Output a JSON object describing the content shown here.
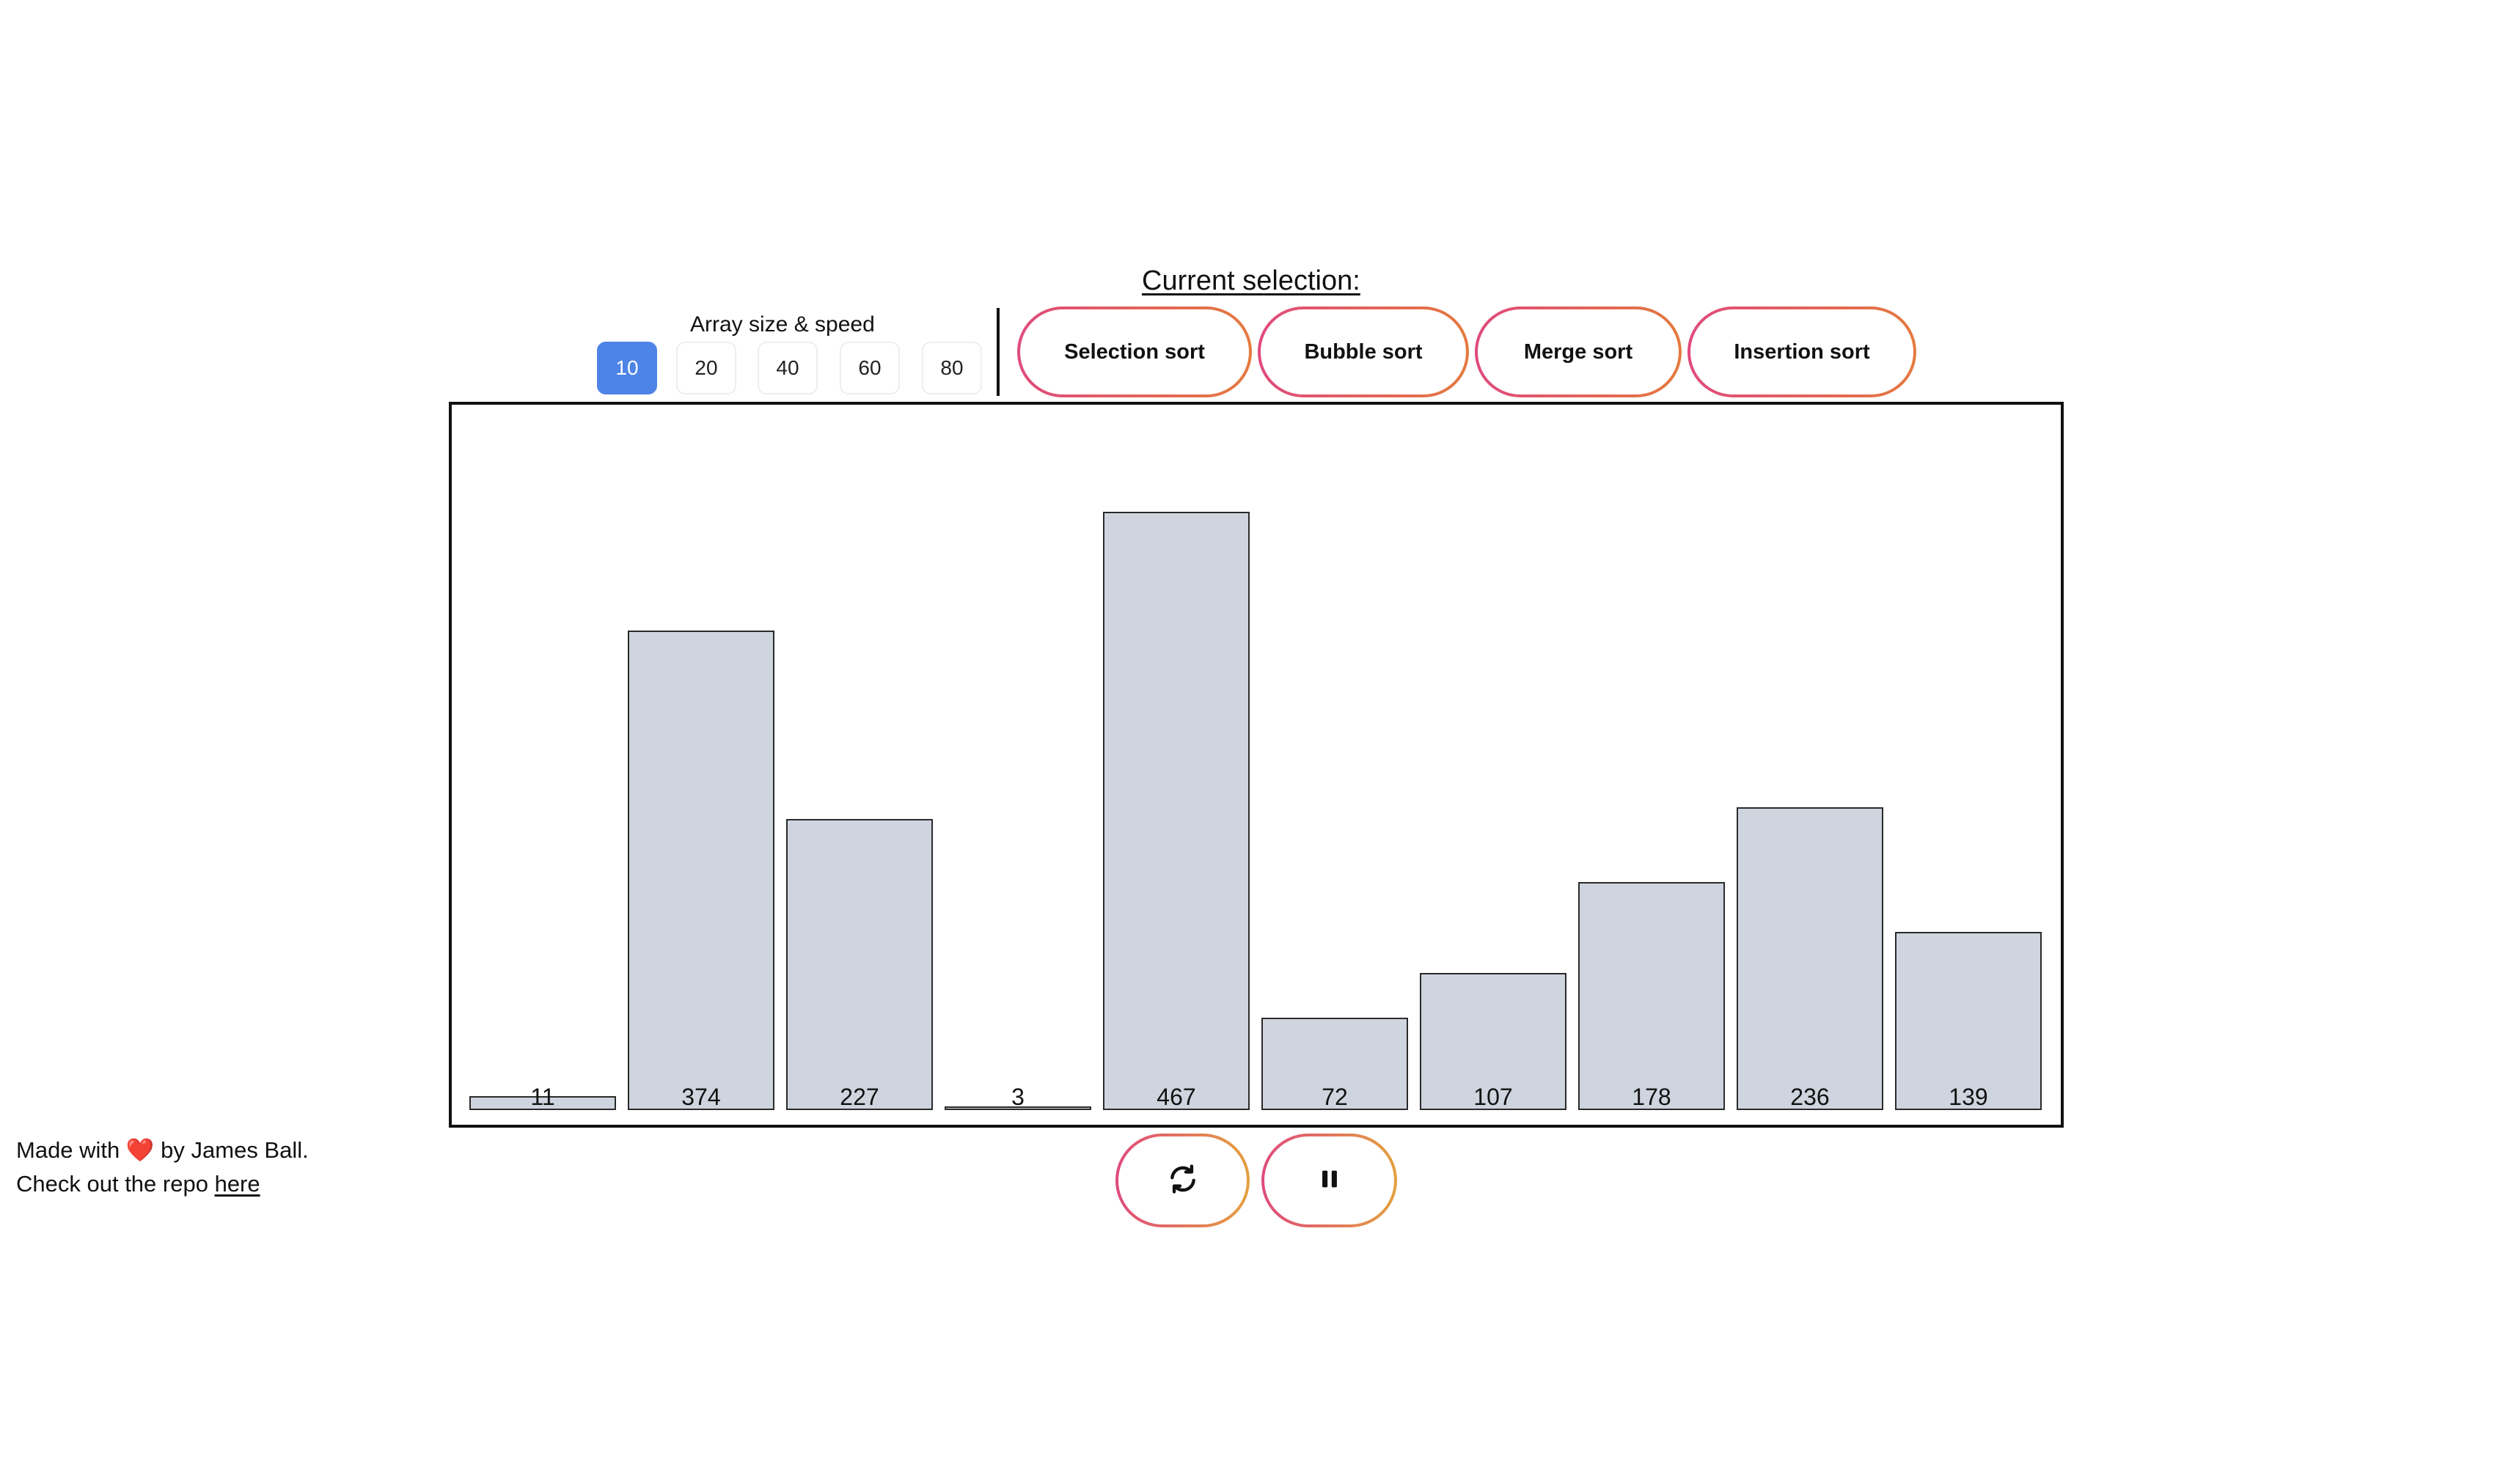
{
  "header": {
    "title": "Current selection:",
    "size_label": "Array size & speed"
  },
  "size_options": [
    {
      "label": "10",
      "selected": true
    },
    {
      "label": "20",
      "selected": false
    },
    {
      "label": "40",
      "selected": false
    },
    {
      "label": "60",
      "selected": false
    },
    {
      "label": "80",
      "selected": false
    }
  ],
  "algorithms": [
    {
      "label": "Selection sort"
    },
    {
      "label": "Bubble sort"
    },
    {
      "label": "Merge sort"
    },
    {
      "label": "Insertion sort"
    }
  ],
  "chart_data": {
    "type": "bar",
    "values": [
      11,
      374,
      227,
      3,
      467,
      72,
      107,
      178,
      236,
      139
    ],
    "bar_color": "#cfd5df",
    "ylim": [
      0,
      500
    ]
  },
  "controls": {
    "refresh_icon": "refresh-icon",
    "pause_icon": "pause-icon"
  },
  "footer": {
    "line1_prefix": "Made with",
    "heart": "❤️",
    "line1_suffix": "by James Ball.",
    "line2_prefix": "Check out the repo",
    "link_text": "here"
  },
  "colors": {
    "accent": "#4e84e8",
    "gradient_start": "#e04a7c",
    "gradient_end": "#e47a3e"
  }
}
